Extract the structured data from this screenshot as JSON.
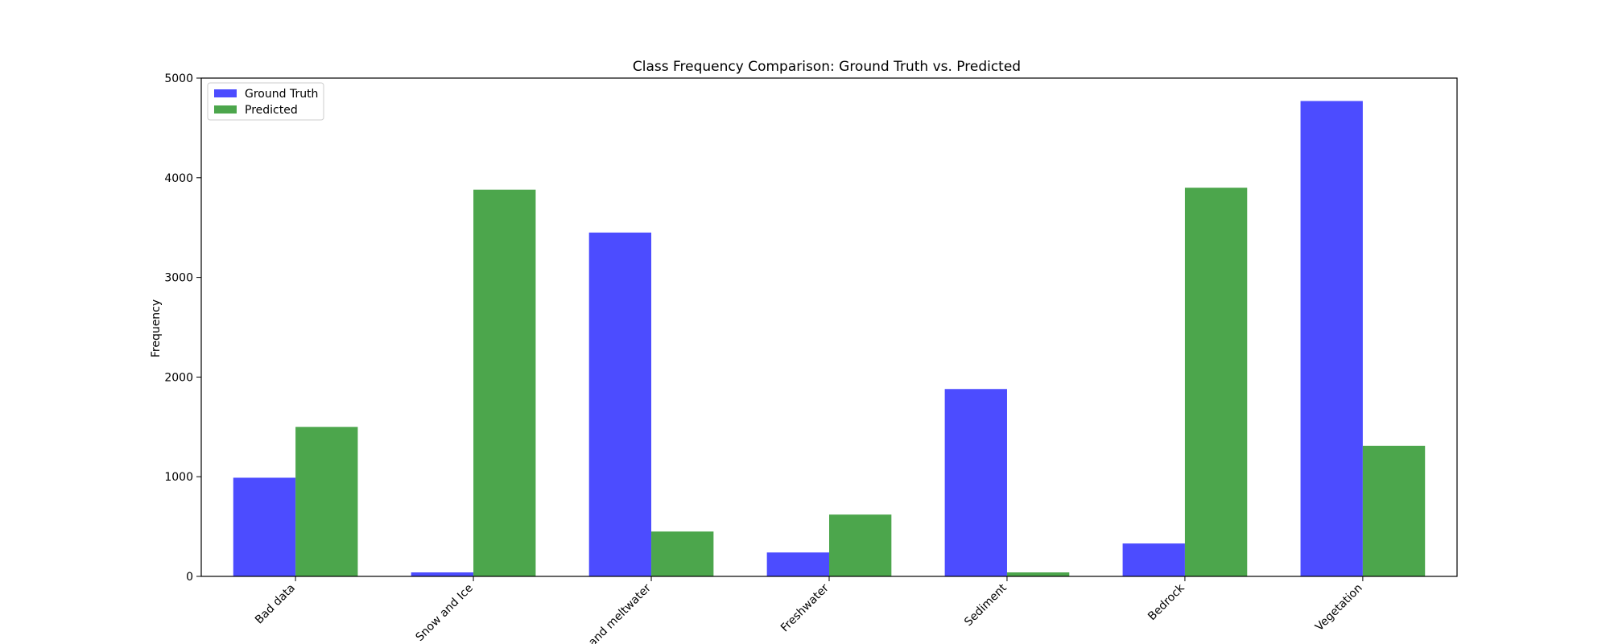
{
  "chart_data": {
    "type": "bar",
    "title": "Class Frequency Comparison: Ground Truth vs. Predicted",
    "xlabel": "",
    "ylabel": "Frequency",
    "categories": [
      "Bad data",
      "Snow and Ice",
      "and meltwater",
      "Freshwater",
      "Sediment",
      "Bedrock",
      "Vegetation"
    ],
    "series": [
      {
        "name": "Ground Truth",
        "color": "#4c4cff",
        "values": [
          990,
          40,
          3450,
          240,
          1880,
          330,
          4770
        ]
      },
      {
        "name": "Predicted",
        "color": "#4ca64c",
        "values": [
          1500,
          3880,
          450,
          620,
          40,
          3900,
          1310
        ]
      }
    ],
    "ylim": [
      0,
      5000
    ],
    "yticks": [
      "0",
      "1000",
      "2000",
      "3000",
      "4000",
      "5000"
    ],
    "grid": false,
    "legend_position": "top-left"
  }
}
